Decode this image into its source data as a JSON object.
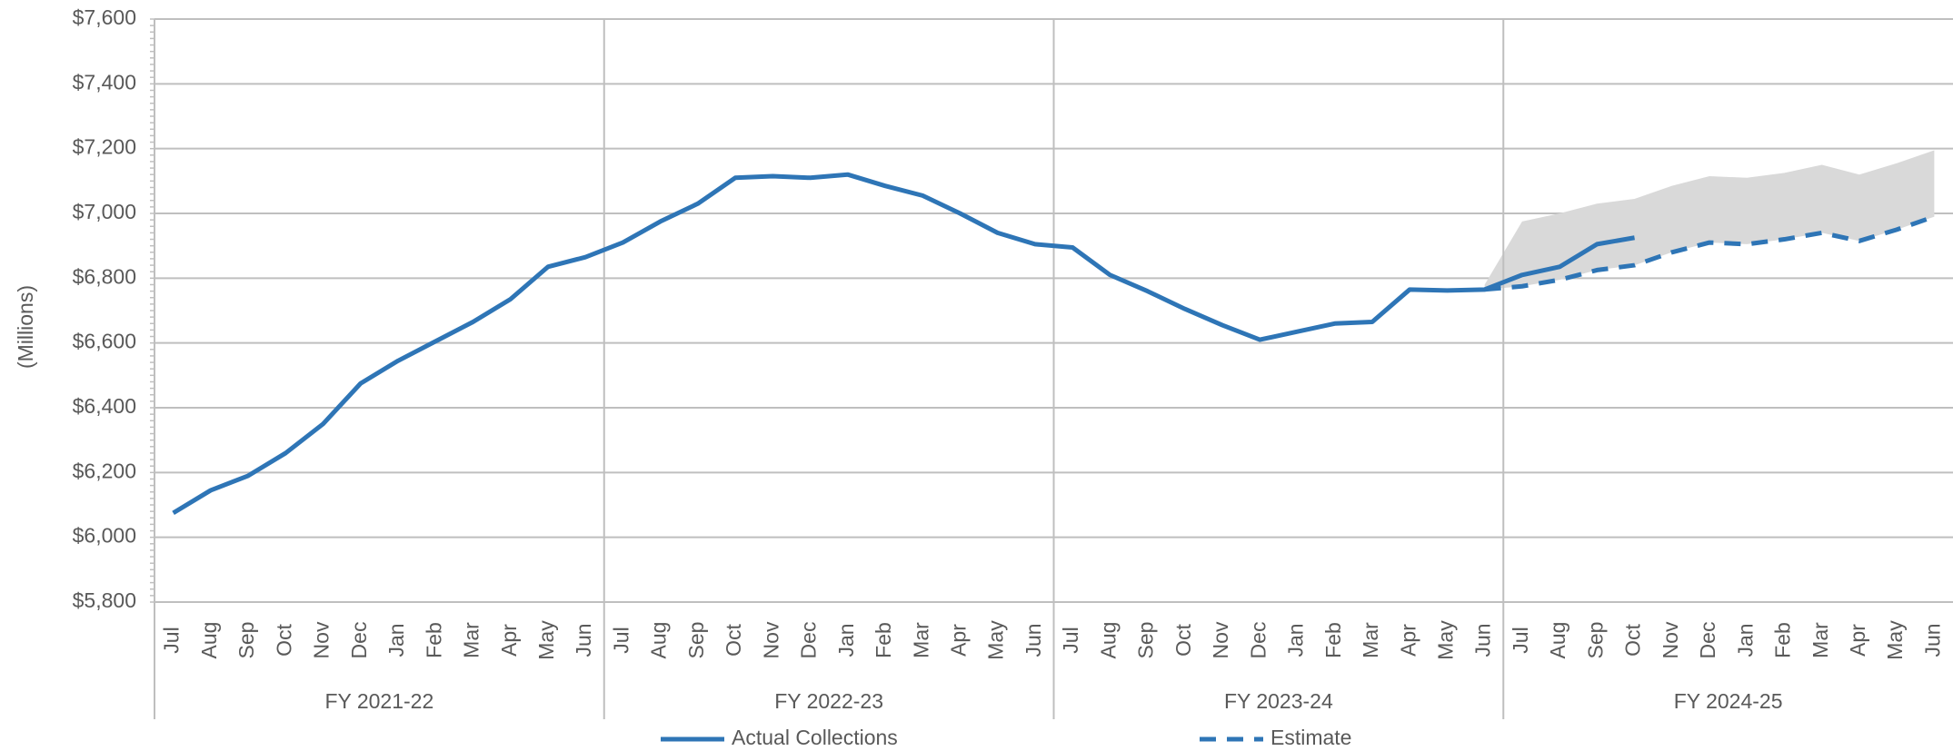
{
  "chart_data": {
    "type": "line",
    "y_label": "(Millions)",
    "ylim": [
      5800,
      7600
    ],
    "yticks": [
      {
        "value": 5800,
        "label": "$5,800"
      },
      {
        "value": 6000,
        "label": "$6,000"
      },
      {
        "value": 6200,
        "label": "$6,200"
      },
      {
        "value": 6400,
        "label": "$6,400"
      },
      {
        "value": 6600,
        "label": "$6,600"
      },
      {
        "value": 6800,
        "label": "$6,800"
      },
      {
        "value": 7000,
        "label": "$7,000"
      },
      {
        "value": 7200,
        "label": "$7,200"
      },
      {
        "value": 7400,
        "label": "$7,400"
      },
      {
        "value": 7600,
        "label": "$7,600"
      }
    ],
    "grid": true,
    "groups": [
      {
        "name": "FY 2021-22",
        "categories": [
          "Jul",
          "Aug",
          "Sep",
          "Oct",
          "Nov",
          "Dec",
          "Jan",
          "Feb",
          "Mar",
          "Apr",
          "May",
          "Jun"
        ]
      },
      {
        "name": "FY 2022-23",
        "categories": [
          "Jul",
          "Aug",
          "Sep",
          "Oct",
          "Nov",
          "Dec",
          "Jan",
          "Feb",
          "Mar",
          "Apr",
          "May",
          "Jun"
        ]
      },
      {
        "name": "FY 2023-24",
        "categories": [
          "Jul",
          "Aug",
          "Sep",
          "Oct",
          "Nov",
          "Dec",
          "Jan",
          "Feb",
          "Mar",
          "Apr",
          "May",
          "Jun"
        ]
      },
      {
        "name": "FY 2024-25",
        "categories": [
          "Jul",
          "Aug",
          "Sep",
          "Oct",
          "Nov",
          "Dec",
          "Jan",
          "Feb",
          "Mar",
          "Apr",
          "May",
          "Jun"
        ]
      }
    ],
    "series": [
      {
        "name": "Actual Collections",
        "color": "#2e75b6",
        "dash": false,
        "values": [
          6075,
          6145,
          6190,
          6260,
          6350,
          6475,
          6545,
          6605,
          6665,
          6735,
          6835,
          6865,
          6910,
          6975,
          7030,
          7110,
          7115,
          7110,
          7120,
          7085,
          7055,
          7000,
          6940,
          6905,
          6895,
          6810,
          6760,
          6705,
          6655,
          6610,
          6635,
          6660,
          6665,
          6765,
          6762,
          6765,
          6810,
          6835,
          6905,
          6925,
          null,
          null,
          null,
          null,
          null,
          null,
          null,
          null
        ]
      },
      {
        "name": "Estimate",
        "color": "#2e75b6",
        "dash": true,
        "values": [
          null,
          null,
          null,
          null,
          null,
          null,
          null,
          null,
          null,
          null,
          null,
          null,
          null,
          null,
          null,
          null,
          null,
          null,
          null,
          null,
          null,
          null,
          null,
          null,
          null,
          null,
          null,
          null,
          null,
          null,
          null,
          null,
          null,
          null,
          null,
          6765,
          6775,
          6795,
          6825,
          6840,
          6880,
          6910,
          6905,
          6920,
          6940,
          6915,
          6950,
          6990
        ]
      }
    ],
    "band": {
      "color": "#d9d9d9",
      "upper": [
        null,
        null,
        null,
        null,
        null,
        null,
        null,
        null,
        null,
        null,
        null,
        null,
        null,
        null,
        null,
        null,
        null,
        null,
        null,
        null,
        null,
        null,
        null,
        null,
        null,
        null,
        null,
        null,
        null,
        null,
        null,
        null,
        null,
        null,
        null,
        6780,
        6975,
        7000,
        7030,
        7045,
        7085,
        7115,
        7110,
        7125,
        7150,
        7120,
        7155,
        7195
      ]
    }
  }
}
